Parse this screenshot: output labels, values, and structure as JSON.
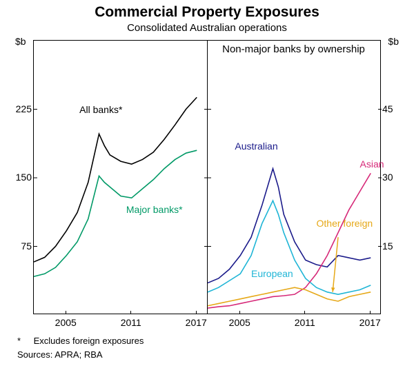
{
  "title": "Commercial Property Exposures",
  "subtitle": "Consolidated Australian operations",
  "footnote_marker": "*",
  "footnote_text": "Excludes foreign exposures",
  "sources_text": "Sources: APRA; RBA",
  "left_panel": {
    "y_unit": "$b",
    "y_min": 0,
    "y_max": 300,
    "y_ticks": [
      75,
      150,
      225
    ],
    "x_min": 2002,
    "x_max": 2018,
    "x_ticks": [
      2005,
      2011,
      2017
    ],
    "series": [
      {
        "name": "all-banks",
        "label": "All banks*",
        "color": "#000000",
        "width": 1.6,
        "label_pos": {
          "x": 2006.2,
          "y": 225
        },
        "points": [
          [
            2002,
            58
          ],
          [
            2003,
            63
          ],
          [
            2004,
            75
          ],
          [
            2005,
            92
          ],
          [
            2006,
            112
          ],
          [
            2007,
            145
          ],
          [
            2008,
            198
          ],
          [
            2008.5,
            185
          ],
          [
            2009,
            175
          ],
          [
            2010,
            168
          ],
          [
            2011,
            165
          ],
          [
            2012,
            170
          ],
          [
            2013,
            178
          ],
          [
            2014,
            192
          ],
          [
            2015,
            208
          ],
          [
            2016,
            225
          ],
          [
            2017,
            238
          ]
        ]
      },
      {
        "name": "major-banks",
        "label": "Major banks*",
        "color": "#009966",
        "width": 1.6,
        "label_pos": {
          "x": 2010.5,
          "y": 115
        },
        "points": [
          [
            2002,
            42
          ],
          [
            2003,
            45
          ],
          [
            2004,
            52
          ],
          [
            2005,
            65
          ],
          [
            2006,
            80
          ],
          [
            2007,
            105
          ],
          [
            2008,
            152
          ],
          [
            2008.5,
            145
          ],
          [
            2009,
            140
          ],
          [
            2010,
            130
          ],
          [
            2011,
            128
          ],
          [
            2012,
            138
          ],
          [
            2013,
            148
          ],
          [
            2014,
            160
          ],
          [
            2015,
            170
          ],
          [
            2016,
            177
          ],
          [
            2017,
            180
          ]
        ]
      }
    ]
  },
  "right_panel": {
    "title": "Non-major banks by ownership",
    "y_unit": "$b",
    "y_min": 0,
    "y_max": 60,
    "y_ticks": [
      15,
      30,
      45
    ],
    "x_min": 2002,
    "x_max": 2018,
    "x_ticks": [
      2005,
      2011,
      2017
    ],
    "series": [
      {
        "name": "australian",
        "label": "Australian",
        "color": "#1a1a8a",
        "width": 1.6,
        "label_pos": {
          "x": 2004.5,
          "y": 37
        },
        "points": [
          [
            2002,
            7
          ],
          [
            2003,
            8
          ],
          [
            2004,
            10
          ],
          [
            2005,
            13
          ],
          [
            2006,
            17
          ],
          [
            2007,
            24
          ],
          [
            2008,
            32
          ],
          [
            2008.5,
            28
          ],
          [
            2009,
            22
          ],
          [
            2010,
            16
          ],
          [
            2011,
            12
          ],
          [
            2012,
            11
          ],
          [
            2013,
            10.5
          ],
          [
            2014,
            13
          ],
          [
            2015,
            12.5
          ],
          [
            2016,
            12
          ],
          [
            2017,
            12.5
          ]
        ]
      },
      {
        "name": "european",
        "label": "European",
        "color": "#1fb5d6",
        "width": 1.6,
        "label_pos": {
          "x": 2006,
          "y": 9
        },
        "points": [
          [
            2002,
            5
          ],
          [
            2003,
            6
          ],
          [
            2004,
            7.5
          ],
          [
            2005,
            9
          ],
          [
            2006,
            13
          ],
          [
            2007,
            20
          ],
          [
            2008,
            25
          ],
          [
            2008.5,
            22
          ],
          [
            2009,
            18
          ],
          [
            2010,
            12
          ],
          [
            2011,
            8
          ],
          [
            2012,
            6
          ],
          [
            2013,
            5
          ],
          [
            2014,
            4.5
          ],
          [
            2015,
            5
          ],
          [
            2016,
            5.5
          ],
          [
            2017,
            6.5
          ]
        ]
      },
      {
        "name": "asian",
        "label": "Asian",
        "color": "#d62878",
        "width": 1.6,
        "label_pos": {
          "x": 2016,
          "y": 33
        },
        "points": [
          [
            2002,
            1.5
          ],
          [
            2003,
            1.8
          ],
          [
            2004,
            2
          ],
          [
            2005,
            2.5
          ],
          [
            2006,
            3
          ],
          [
            2007,
            3.5
          ],
          [
            2008,
            4
          ],
          [
            2009,
            4.2
          ],
          [
            2010,
            4.5
          ],
          [
            2011,
            6
          ],
          [
            2012,
            9
          ],
          [
            2013,
            13
          ],
          [
            2014,
            18
          ],
          [
            2015,
            23
          ],
          [
            2016,
            27
          ],
          [
            2017,
            31
          ]
        ]
      },
      {
        "name": "other-foreign",
        "label": "Other foreign",
        "color": "#e6a817",
        "width": 1.6,
        "label_pos": {
          "x": 2012,
          "y": 20
        },
        "arrow_from": {
          "x": 2014,
          "y": 17
        },
        "arrow_to": {
          "x": 2013.5,
          "y": 5
        },
        "points": [
          [
            2002,
            2
          ],
          [
            2003,
            2.5
          ],
          [
            2004,
            3
          ],
          [
            2005,
            3.5
          ],
          [
            2006,
            4
          ],
          [
            2007,
            4.5
          ],
          [
            2008,
            5
          ],
          [
            2009,
            5.5
          ],
          [
            2010,
            6
          ],
          [
            2011,
            5.5
          ],
          [
            2012,
            4.5
          ],
          [
            2013,
            3.5
          ],
          [
            2014,
            3
          ],
          [
            2015,
            4
          ],
          [
            2016,
            4.5
          ],
          [
            2017,
            5
          ]
        ]
      }
    ]
  }
}
